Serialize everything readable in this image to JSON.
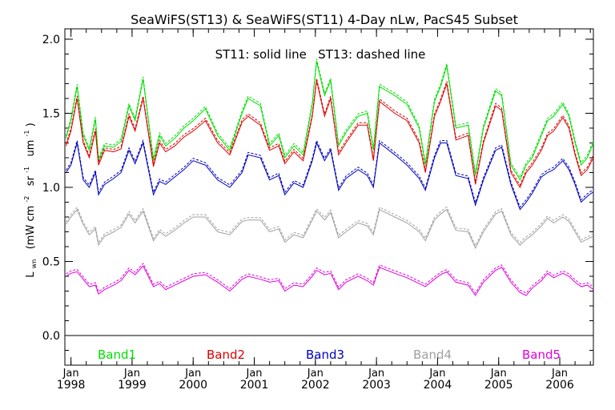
{
  "chart_data": {
    "type": "line",
    "title": "SeaWiFS(ST13) & SeaWiFS(ST11) 4-Day nLw, PacS45 Subset",
    "annotation": "ST11: solid line   ST13: dashed line",
    "ylabel": "L",
    "ylabel_sub": "wn",
    "ylabel_units": "(mW cm",
    "ylabel_units_rest": "sr",
    "ylabel_units_tail": "um",
    "ylabel_exp": "-2",
    "ylabel_exp2": "-1",
    "ylabel_exp3": "-1",
    "ylabel_close": ")",
    "xlim": [
      1997.9,
      2006.55
    ],
    "ylim": [
      -0.2,
      2.07
    ],
    "x_tick_top": "Jan",
    "x_ticks": [
      {
        "x": 1998,
        "label": "1998"
      },
      {
        "x": 1999,
        "label": "1999"
      },
      {
        "x": 2000,
        "label": "2000"
      },
      {
        "x": 2001,
        "label": "2001"
      },
      {
        "x": 2002,
        "label": "2002"
      },
      {
        "x": 2003,
        "label": "2003"
      },
      {
        "x": 2004,
        "label": "2004"
      },
      {
        "x": 2005,
        "label": "2005"
      },
      {
        "x": 2006,
        "label": "2006"
      }
    ],
    "y_ticks": [
      "0.0",
      "0.5",
      "1.0",
      "1.5",
      "2.0"
    ],
    "zero_line": 0,
    "legend": "bottom",
    "x": [
      1997.92,
      1998.0,
      1998.1,
      1998.2,
      1998.3,
      1998.4,
      1998.45,
      1998.55,
      1998.7,
      1998.82,
      1998.95,
      1999.05,
      1999.18,
      1999.35,
      1999.45,
      1999.55,
      1999.7,
      1999.85,
      2000.0,
      2000.2,
      2000.4,
      2000.6,
      2000.8,
      2000.9,
      2001.1,
      2001.25,
      2001.4,
      2001.5,
      2001.65,
      2001.8,
      2001.95,
      2002.02,
      2002.15,
      2002.25,
      2002.38,
      2002.5,
      2002.7,
      2002.85,
      2002.95,
      2003.05,
      2003.3,
      2003.5,
      2003.7,
      2003.8,
      2003.95,
      2004.05,
      2004.15,
      2004.3,
      2004.5,
      2004.62,
      2004.75,
      2004.95,
      2005.05,
      2005.2,
      2005.35,
      2005.45,
      2005.55,
      2005.7,
      2005.8,
      2005.9,
      2006.05,
      2006.15,
      2006.25,
      2006.35,
      2006.45,
      2006.55
    ],
    "series": [
      {
        "name": "Band1",
        "color": "#00e000",
        "values": [
          1.33,
          1.45,
          1.68,
          1.35,
          1.25,
          1.46,
          1.18,
          1.28,
          1.27,
          1.31,
          1.55,
          1.45,
          1.73,
          1.18,
          1.35,
          1.28,
          1.33,
          1.4,
          1.45,
          1.53,
          1.35,
          1.25,
          1.5,
          1.6,
          1.55,
          1.28,
          1.35,
          1.2,
          1.28,
          1.22,
          1.56,
          1.85,
          1.62,
          1.72,
          1.28,
          1.37,
          1.48,
          1.5,
          1.25,
          1.68,
          1.62,
          1.56,
          1.4,
          1.15,
          1.58,
          1.68,
          1.82,
          1.4,
          1.42,
          1.08,
          1.4,
          1.65,
          1.62,
          1.15,
          1.05,
          1.15,
          1.2,
          1.35,
          1.45,
          1.48,
          1.56,
          1.48,
          1.3,
          1.15,
          1.2,
          1.3
        ]
      },
      {
        "name": "Band2",
        "color": "#e00000",
        "values": [
          1.28,
          1.38,
          1.6,
          1.3,
          1.2,
          1.38,
          1.15,
          1.25,
          1.24,
          1.26,
          1.48,
          1.38,
          1.6,
          1.14,
          1.3,
          1.24,
          1.28,
          1.34,
          1.38,
          1.45,
          1.3,
          1.22,
          1.44,
          1.48,
          1.42,
          1.25,
          1.28,
          1.16,
          1.24,
          1.18,
          1.48,
          1.72,
          1.48,
          1.6,
          1.22,
          1.3,
          1.42,
          1.42,
          1.18,
          1.58,
          1.5,
          1.45,
          1.3,
          1.1,
          1.48,
          1.58,
          1.7,
          1.32,
          1.35,
          1.02,
          1.3,
          1.55,
          1.52,
          1.1,
          1.0,
          1.1,
          1.15,
          1.25,
          1.35,
          1.38,
          1.47,
          1.4,
          1.22,
          1.08,
          1.12,
          1.2
        ]
      },
      {
        "name": "Band3",
        "color": "#0000c0",
        "values": [
          1.1,
          1.15,
          1.3,
          1.05,
          1.0,
          1.1,
          0.95,
          1.02,
          1.06,
          1.1,
          1.25,
          1.16,
          1.3,
          0.95,
          1.04,
          1.02,
          1.07,
          1.12,
          1.18,
          1.15,
          1.05,
          1.0,
          1.1,
          1.22,
          1.2,
          1.05,
          1.08,
          0.95,
          1.03,
          1.0,
          1.18,
          1.3,
          1.18,
          1.25,
          0.98,
          1.06,
          1.12,
          1.08,
          1.0,
          1.3,
          1.22,
          1.15,
          1.06,
          0.98,
          1.2,
          1.3,
          1.3,
          1.08,
          1.06,
          0.88,
          1.05,
          1.25,
          1.27,
          1.02,
          0.85,
          0.9,
          0.96,
          1.07,
          1.1,
          1.12,
          1.18,
          1.12,
          1.02,
          0.9,
          0.94,
          0.97
        ]
      },
      {
        "name": "Band4",
        "color": "#a0a0a0",
        "values": [
          0.75,
          0.8,
          0.85,
          0.75,
          0.68,
          0.72,
          0.61,
          0.67,
          0.7,
          0.73,
          0.82,
          0.76,
          0.84,
          0.64,
          0.7,
          0.67,
          0.71,
          0.76,
          0.8,
          0.8,
          0.7,
          0.68,
          0.77,
          0.78,
          0.78,
          0.7,
          0.72,
          0.63,
          0.68,
          0.66,
          0.78,
          0.84,
          0.78,
          0.83,
          0.66,
          0.7,
          0.76,
          0.74,
          0.68,
          0.85,
          0.8,
          0.76,
          0.7,
          0.64,
          0.78,
          0.82,
          0.85,
          0.71,
          0.7,
          0.59,
          0.7,
          0.82,
          0.84,
          0.68,
          0.61,
          0.65,
          0.68,
          0.74,
          0.79,
          0.76,
          0.8,
          0.77,
          0.7,
          0.63,
          0.65,
          0.67
        ]
      },
      {
        "name": "Band5",
        "color": "#e000e0",
        "values": [
          0.4,
          0.42,
          0.43,
          0.38,
          0.33,
          0.34,
          0.28,
          0.31,
          0.34,
          0.37,
          0.44,
          0.41,
          0.47,
          0.33,
          0.35,
          0.31,
          0.34,
          0.37,
          0.4,
          0.41,
          0.36,
          0.3,
          0.38,
          0.4,
          0.38,
          0.36,
          0.37,
          0.3,
          0.34,
          0.33,
          0.4,
          0.44,
          0.41,
          0.42,
          0.31,
          0.36,
          0.4,
          0.37,
          0.34,
          0.46,
          0.42,
          0.39,
          0.35,
          0.33,
          0.38,
          0.41,
          0.43,
          0.36,
          0.34,
          0.27,
          0.36,
          0.44,
          0.46,
          0.36,
          0.29,
          0.27,
          0.32,
          0.37,
          0.42,
          0.39,
          0.42,
          0.4,
          0.36,
          0.33,
          0.34,
          0.31
        ]
      }
    ]
  }
}
